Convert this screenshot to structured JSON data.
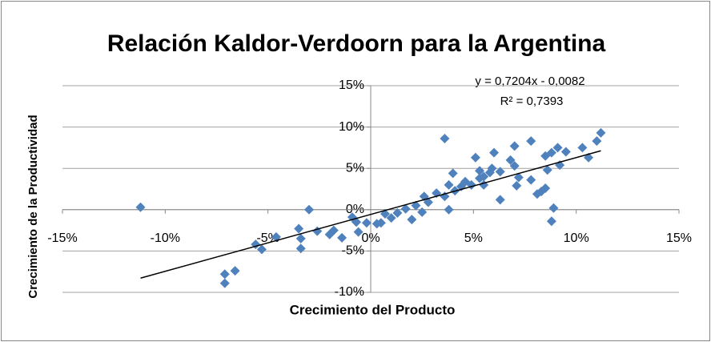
{
  "chart_data": {
    "type": "scatter",
    "title": "Relación Kaldor-Verdoorn para la Argentina",
    "xlabel": "Crecimiento del Producto",
    "ylabel": "Crecimiento de la Productividad",
    "trendline": {
      "equation": "y = 0,7204x - 0,0082",
      "r2": "R² = 0,7393"
    },
    "color": "#4f81bd",
    "grid": true,
    "xlim": [
      -15,
      15
    ],
    "ylim": [
      -10,
      15
    ],
    "xticks": [
      {
        "value": -15,
        "label": "-15%"
      },
      {
        "value": -10,
        "label": "-10%"
      },
      {
        "value": -5,
        "label": "-5%"
      },
      {
        "value": 0,
        "label": "0%"
      },
      {
        "value": 5,
        "label": "5%"
      },
      {
        "value": 10,
        "label": "10%"
      },
      {
        "value": 15,
        "label": "15%"
      }
    ],
    "yticks": [
      {
        "value": -10,
        "label": "-10%"
      },
      {
        "value": -5,
        "label": "-5%"
      },
      {
        "value": 0,
        "label": "0%"
      },
      {
        "value": 5,
        "label": "5%"
      },
      {
        "value": 10,
        "label": "10%"
      },
      {
        "value": 15,
        "label": "15%"
      }
    ],
    "x": [
      -11.2,
      -7.1,
      -7.1,
      -6.6,
      -5.6,
      -5.3,
      -4.6,
      -3.0,
      -3.5,
      -3.4,
      -3.4,
      -2.6,
      -2.0,
      -1.8,
      -1.4,
      -0.9,
      -0.7,
      -0.6,
      -0.2,
      0.3,
      0.5,
      0.7,
      1.0,
      1.3,
      1.7,
      2.0,
      2.2,
      2.5,
      2.6,
      2.8,
      3.2,
      3.6,
      3.6,
      3.8,
      3.8,
      4.0,
      4.1,
      4.4,
      4.6,
      4.9,
      5.1,
      5.3,
      5.3,
      5.5,
      5.5,
      5.8,
      5.9,
      6.0,
      6.3,
      6.3,
      6.8,
      7.0,
      7.0,
      7.1,
      7.2,
      7.8,
      7.8,
      8.1,
      8.3,
      8.5,
      8.5,
      8.6,
      8.8,
      8.9,
      8.8,
      9.1,
      9.2,
      9.5,
      10.3,
      10.6,
      11.0,
      11.2
    ],
    "y": [
      0.3,
      -7.8,
      -8.9,
      -7.4,
      -4.2,
      -4.8,
      -3.3,
      0.0,
      -2.3,
      -3.5,
      -4.7,
      -2.6,
      -3.0,
      -2.5,
      -3.4,
      -0.9,
      -1.5,
      -2.7,
      -1.6,
      -1.7,
      -1.6,
      -0.5,
      -1.0,
      -0.4,
      0.1,
      -1.2,
      0.5,
      -0.3,
      1.6,
      0.9,
      2.0,
      8.6,
      1.6,
      3.0,
      0.0,
      4.4,
      2.3,
      2.8,
      3.4,
      3.0,
      6.3,
      4.7,
      3.8,
      4.0,
      3.0,
      4.5,
      5.0,
      6.9,
      4.6,
      1.2,
      6.0,
      7.7,
      5.3,
      2.9,
      3.9,
      8.3,
      3.6,
      1.9,
      2.2,
      2.6,
      6.5,
      4.8,
      -1.4,
      0.2,
      6.9,
      7.5,
      5.4,
      7.0,
      7.5,
      6.3,
      8.3,
      9.3
    ]
  }
}
